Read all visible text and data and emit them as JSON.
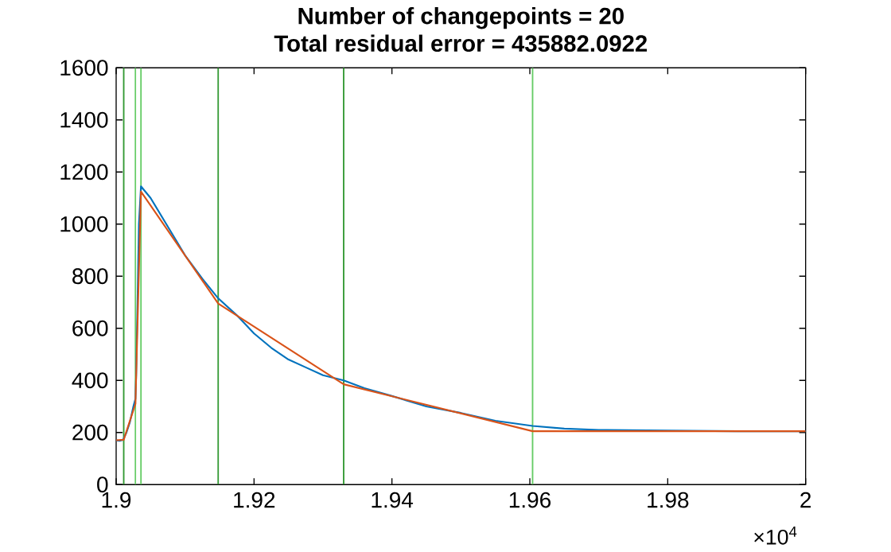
{
  "chart_data": {
    "type": "line",
    "title": "Number of changepoints = 20",
    "subtitle": "Total residual error = 435882.0922",
    "xlim": [
      1.9,
      2
    ],
    "ylim": [
      0,
      1600
    ],
    "xticks": [
      1.9,
      1.92,
      1.94,
      1.96,
      1.98,
      2
    ],
    "yticks": [
      0,
      200,
      400,
      600,
      800,
      1000,
      1200,
      1400,
      1600
    ],
    "annotations": [
      "×10$^{4}$"
    ],
    "series": [
      {
        "color": "#0072bd",
        "x": [
          1.9,
          1.9005,
          1.901,
          1.9015,
          1.902,
          1.9025,
          1.9028,
          1.9029,
          1.9031,
          1.9033,
          1.9036,
          1.905,
          1.9075,
          1.91,
          1.9125,
          1.9148,
          1.9175,
          1.92,
          1.9225,
          1.925,
          1.9275,
          1.93,
          1.933,
          1.936,
          1.94,
          1.945,
          1.95,
          1.955,
          1.9604,
          1.965,
          1.97,
          1.98,
          1.99,
          2
        ],
        "values": [
          170,
          168,
          172,
          200,
          240,
          300,
          330,
          420,
          700,
          1000,
          1145,
          1100,
          990,
          880,
          790,
          715,
          650,
          580,
          525,
          480,
          450,
          420,
          400,
          370,
          340,
          300,
          275,
          245,
          225,
          215,
          210,
          207,
          205,
          205
        ]
      },
      {
        "color": "#d95319",
        "x": [
          1.9,
          1.9011,
          1.9028,
          1.9036,
          1.9148,
          1.933,
          1.9604,
          2
        ],
        "values": [
          170,
          172,
          310,
          1125,
          695,
          385,
          205,
          205
        ]
      }
    ],
    "ref_lines": [
      {
        "axis": "x",
        "value": 1.9011,
        "color": "#339933"
      },
      {
        "axis": "x",
        "value": 1.9028,
        "color": "#66cc66"
      },
      {
        "axis": "x",
        "value": 1.9036,
        "color": "#66cc66"
      },
      {
        "axis": "x",
        "value": 1.9148,
        "color": "#339933"
      },
      {
        "axis": "x",
        "value": 1.933,
        "color": "#339933"
      },
      {
        "axis": "x",
        "value": 1.9604,
        "color": "#66cc66"
      }
    ]
  }
}
